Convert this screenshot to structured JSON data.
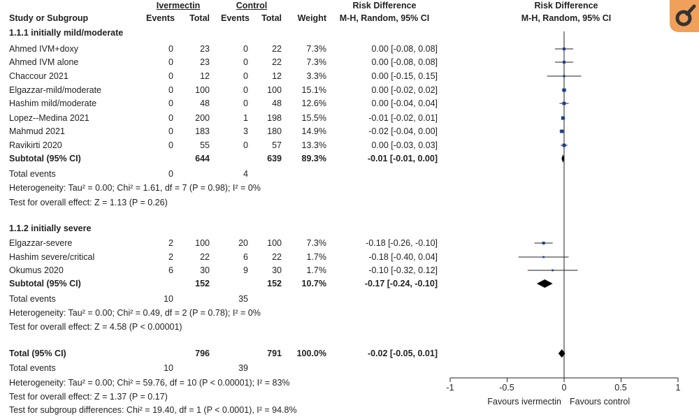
{
  "header": {
    "group1": "Ivermectin",
    "group2": "Control",
    "rd_title": "Risk Difference",
    "rd_method": "M-H, Random, 95% CI",
    "plot_title": "Risk Difference",
    "plot_method": "M-H, Random, 95% CI",
    "col_study": "Study or Subgroup",
    "col_events1": "Events",
    "col_total1": "Total",
    "col_events2": "Events",
    "col_total2": "Total",
    "col_weight": "Weight"
  },
  "subgroups": [
    {
      "title": "1.1.1 initially mild/moderate",
      "studies": [
        {
          "name": "Ahmed IVM+doxy",
          "e1": "0",
          "t1": "23",
          "e2": "0",
          "t2": "22",
          "weight": "7.3%",
          "ci": "0.00 [-0.08, 0.08]"
        },
        {
          "name": "Ahmed IVM alone",
          "e1": "0",
          "t1": "23",
          "e2": "0",
          "t2": "22",
          "weight": "7.3%",
          "ci": "0.00 [-0.08, 0.08]"
        },
        {
          "name": "Chaccour 2021",
          "e1": "0",
          "t1": "12",
          "e2": "0",
          "t2": "12",
          "weight": "3.3%",
          "ci": "0.00 [-0.15, 0.15]"
        },
        {
          "name": "Elgazzar-mild/moderate",
          "e1": "0",
          "t1": "100",
          "e2": "0",
          "t2": "100",
          "weight": "15.1%",
          "ci": "0.00 [-0.02, 0.02]"
        },
        {
          "name": "Hashim mild/moderate",
          "e1": "0",
          "t1": "48",
          "e2": "0",
          "t2": "48",
          "weight": "12.6%",
          "ci": "0.00 [-0.04, 0.04]"
        },
        {
          "name": "Lopez--Medina 2021",
          "e1": "0",
          "t1": "200",
          "e2": "1",
          "t2": "198",
          "weight": "15.5%",
          "ci": "-0.01 [-0.02, 0.01]"
        },
        {
          "name": "Mahmud 2021",
          "e1": "0",
          "t1": "183",
          "e2": "3",
          "t2": "180",
          "weight": "14.9%",
          "ci": "-0.02 [-0.04, 0.00]"
        },
        {
          "name": "Ravikirti 2020",
          "e1": "0",
          "t1": "55",
          "e2": "0",
          "t2": "57",
          "weight": "13.3%",
          "ci": "0.00 [-0.03, 0.03]"
        }
      ],
      "subtotal": {
        "label": "Subtotal (95% CI)",
        "t1": "644",
        "t2": "639",
        "weight": "89.3%",
        "ci": "-0.01 [-0.01, 0.00]"
      },
      "total_events": {
        "label": "Total events",
        "e1": "0",
        "e2": "4"
      },
      "heterogeneity": "Heterogeneity: Tau² = 0.00; Chi² = 1.61, df = 7 (P = 0.98); I² = 0%",
      "overall": "Test for overall effect: Z = 1.13 (P = 0.26)"
    },
    {
      "title": "1.1.2 initially severe",
      "studies": [
        {
          "name": "Elgazzar-severe",
          "e1": "2",
          "t1": "100",
          "e2": "20",
          "t2": "100",
          "weight": "7.3%",
          "ci": "-0.18 [-0.26, -0.10]"
        },
        {
          "name": "Hashim severe/critical",
          "e1": "2",
          "t1": "22",
          "e2": "6",
          "t2": "22",
          "weight": "1.7%",
          "ci": "-0.18 [-0.40, 0.04]"
        },
        {
          "name": "Okumus 2020",
          "e1": "6",
          "t1": "30",
          "e2": "9",
          "t2": "30",
          "weight": "1.7%",
          "ci": "-0.10 [-0.32, 0.12]"
        }
      ],
      "subtotal": {
        "label": "Subtotal (95% CI)",
        "t1": "152",
        "t2": "152",
        "weight": "10.7%",
        "ci": "-0.17 [-0.24, -0.10]"
      },
      "total_events": {
        "label": "Total events",
        "e1": "10",
        "e2": "35"
      },
      "heterogeneity": "Heterogeneity: Tau² = 0.00; Chi² = 0.49, df = 2 (P = 0.78); I² = 0%",
      "overall": "Test for overall effect: Z = 4.58 (P < 0.00001)"
    }
  ],
  "total": {
    "label": "Total (95% CI)",
    "t1": "796",
    "t2": "791",
    "weight": "100.0%",
    "ci": "-0.02 [-0.05, 0.01]",
    "events_label": "Total events",
    "e1": "10",
    "e2": "39",
    "heterogeneity": "Heterogeneity: Tau² = 0.00; Chi² = 59.76, df = 10 (P < 0.00001); I² = 83%",
    "overall": "Test for overall effect: Z = 1.37 (P = 0.17)",
    "subgroup_diff": "Test for subgroup differences: Chi² = 19.40, df = 1 (P < 0.0001), I² = 94.8%"
  },
  "axis": {
    "ticks": [
      "-1",
      "-0.5",
      "0",
      "0.5",
      "1"
    ],
    "favours_left": "Favours ivermectin",
    "favours_right": "Favours control"
  },
  "colors": {
    "study_marker": "#1a3d8f",
    "line": "#222222",
    "diamond": "#000000",
    "brand": "#333333",
    "brand_accent": "#f0a05a"
  },
  "chart_data": {
    "type": "forest",
    "xlim": [
      -1,
      1
    ],
    "series": [
      {
        "name": "Ahmed IVM+doxy",
        "rd": 0.0,
        "lo": -0.08,
        "hi": 0.08,
        "weight": 7.3
      },
      {
        "name": "Ahmed IVM alone",
        "rd": 0.0,
        "lo": -0.08,
        "hi": 0.08,
        "weight": 7.3
      },
      {
        "name": "Chaccour 2021",
        "rd": 0.0,
        "lo": -0.15,
        "hi": 0.15,
        "weight": 3.3
      },
      {
        "name": "Elgazzar-mild/moderate",
        "rd": 0.0,
        "lo": -0.02,
        "hi": 0.02,
        "weight": 15.1
      },
      {
        "name": "Hashim mild/moderate",
        "rd": 0.0,
        "lo": -0.04,
        "hi": 0.04,
        "weight": 12.6
      },
      {
        "name": "Lopez--Medina 2021",
        "rd": -0.01,
        "lo": -0.02,
        "hi": 0.01,
        "weight": 15.5
      },
      {
        "name": "Mahmud 2021",
        "rd": -0.02,
        "lo": -0.04,
        "hi": 0.0,
        "weight": 14.9
      },
      {
        "name": "Ravikirti 2020",
        "rd": 0.0,
        "lo": -0.03,
        "hi": 0.03,
        "weight": 13.3
      },
      {
        "name": "Subtotal (95% CI)",
        "rd": -0.01,
        "lo": -0.01,
        "hi": 0.0,
        "diamond": true
      },
      {
        "name": "Elgazzar-severe",
        "rd": -0.18,
        "lo": -0.26,
        "hi": -0.1,
        "weight": 7.3
      },
      {
        "name": "Hashim severe/critical",
        "rd": -0.18,
        "lo": -0.4,
        "hi": 0.04,
        "weight": 1.7
      },
      {
        "name": "Okumus 2020",
        "rd": -0.1,
        "lo": -0.32,
        "hi": 0.12,
        "weight": 1.7
      },
      {
        "name": "Subtotal (95% CI)",
        "rd": -0.17,
        "lo": -0.24,
        "hi": -0.1,
        "diamond": true
      },
      {
        "name": "Total (95% CI)",
        "rd": -0.02,
        "lo": -0.05,
        "hi": 0.01,
        "diamond": true
      }
    ]
  }
}
